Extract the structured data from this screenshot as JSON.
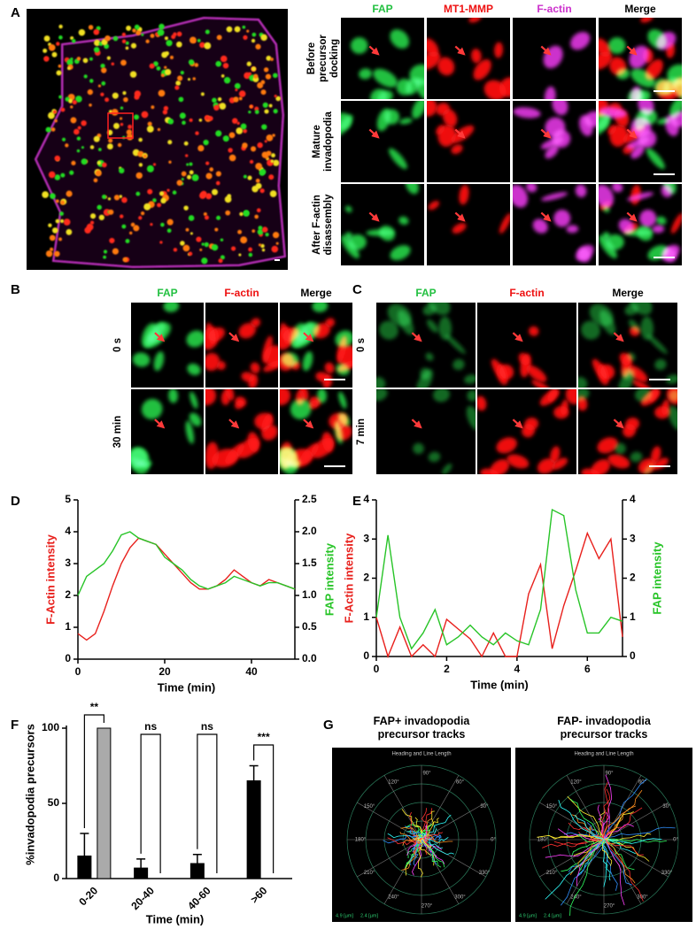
{
  "panel_labels": [
    "A",
    "B",
    "C",
    "D",
    "E",
    "F",
    "G"
  ],
  "panel_a": {
    "channels": [
      "FAP",
      "MT1-MMP",
      "F-actin",
      "Merge"
    ],
    "rows": [
      "Before precursor docking",
      "Mature invadopodia",
      "After F-actin disassembly"
    ]
  },
  "panel_b": {
    "channels": [
      "FAP",
      "F-actin",
      "Merge"
    ],
    "rows": [
      "0 s",
      "30 min"
    ]
  },
  "panel_c": {
    "channels": [
      "FAP",
      "F-actin",
      "Merge"
    ],
    "rows": [
      "0 s",
      "7 min"
    ]
  },
  "panel_g": {
    "titles": [
      "FAP+ invadopodia precursor tracks",
      "FAP- invadopodia precursor tracks"
    ],
    "plot_title": "Heading and Line Length",
    "angles": [
      "0°",
      "30°",
      "60°",
      "90°",
      "120°",
      "150°",
      "180°",
      "210°",
      "240°",
      "270°",
      "300°",
      "330°"
    ],
    "scale_labels": [
      "4.9 [µm]",
      "2.4 [µm]"
    ]
  },
  "chart_data": [
    {
      "type": "line",
      "xlabel": "Time (min)",
      "ylabel": "F-Actin intensity",
      "y2label": "FAP intensity",
      "x": [
        0,
        2,
        4,
        6,
        8,
        10,
        12,
        14,
        16,
        18,
        20,
        22,
        24,
        26,
        28,
        30,
        32,
        34,
        36,
        38,
        40,
        42,
        44,
        46,
        48,
        50
      ],
      "xlim": [
        0,
        50
      ],
      "xticks": [
        0,
        20,
        40
      ],
      "ylim": [
        0,
        5
      ],
      "yticks": [
        0,
        1,
        2,
        3,
        4,
        5
      ],
      "y2lim": [
        0,
        2.5
      ],
      "y2ticks": [
        {
          "value": 0,
          "label": "0.0"
        },
        0.5,
        {
          "value": 1,
          "label": "1.0"
        },
        1.5,
        {
          "value": 2,
          "label": "2.0"
        },
        2.5
      ],
      "series": [
        {
          "color": "#e8201c",
          "values": [
            0.8,
            0.6,
            0.8,
            1.5,
            2.3,
            3.0,
            3.5,
            3.8,
            3.7,
            3.6,
            3.3,
            3.0,
            2.7,
            2.4,
            2.2,
            2.2,
            2.3,
            2.5,
            2.8,
            2.6,
            2.4,
            2.3,
            2.5,
            2.4,
            2.3,
            2.2
          ]
        },
        {
          "color": "#27c427",
          "axis": "y2",
          "values": [
            1.0,
            1.3,
            1.4,
            1.5,
            1.7,
            1.95,
            2.0,
            1.9,
            1.85,
            1.8,
            1.6,
            1.5,
            1.4,
            1.25,
            1.15,
            1.1,
            1.15,
            1.2,
            1.3,
            1.25,
            1.2,
            1.15,
            1.2,
            1.2,
            1.15,
            1.1
          ]
        }
      ]
    },
    {
      "type": "line",
      "xlabel": "Time (min)",
      "ylabel": "F-Actin intensity",
      "y2label": "FAP intensity",
      "x": [
        0,
        0.33,
        0.67,
        1,
        1.33,
        1.67,
        2,
        2.33,
        2.67,
        3,
        3.33,
        3.67,
        4,
        4.33,
        4.67,
        5,
        5.33,
        5.67,
        6,
        6.33,
        6.67,
        7
      ],
      "xlim": [
        0,
        7
      ],
      "xticks": [
        0,
        2,
        4,
        6
      ],
      "ylim": [
        0,
        4
      ],
      "yticks": [
        0,
        1,
        2,
        3,
        4
      ],
      "y2lim": [
        0,
        4
      ],
      "y2ticks": [
        0,
        1,
        2,
        3,
        4
      ],
      "series": [
        {
          "color": "#e8201c",
          "values": [
            1.0,
            0,
            0.75,
            0,
            0.3,
            0,
            0.95,
            0.7,
            0.45,
            0,
            0.6,
            0,
            0,
            1.6,
            2.35,
            0.2,
            1.3,
            2.2,
            3.15,
            2.5,
            3.0,
            0.5
          ]
        },
        {
          "color": "#27c427",
          "axis": "y2",
          "values": [
            1.0,
            3.1,
            1.0,
            0.2,
            0.6,
            1.2,
            0.3,
            0.5,
            0.8,
            0.5,
            0.3,
            0.6,
            0.4,
            0.3,
            1.2,
            3.75,
            3.6,
            1.7,
            0.6,
            0.6,
            1.0,
            0.9
          ]
        }
      ]
    },
    {
      "type": "bar",
      "xlabel": "Time (min)",
      "ylabel": "%invadopodia precursors",
      "categories": [
        "0-20",
        "20-40",
        "40-60",
        ">60"
      ],
      "ylim": [
        0,
        100
      ],
      "yticks": [
        0,
        50,
        100
      ],
      "series": [
        {
          "color": "#000000",
          "values": [
            15,
            7,
            10,
            65
          ],
          "errors": [
            15,
            6,
            6,
            10
          ]
        },
        {
          "color": "#aaaaaa",
          "values": [
            100,
            0,
            0,
            0
          ]
        }
      ],
      "significance": [
        "**",
        "ns",
        "ns",
        "***"
      ]
    }
  ]
}
